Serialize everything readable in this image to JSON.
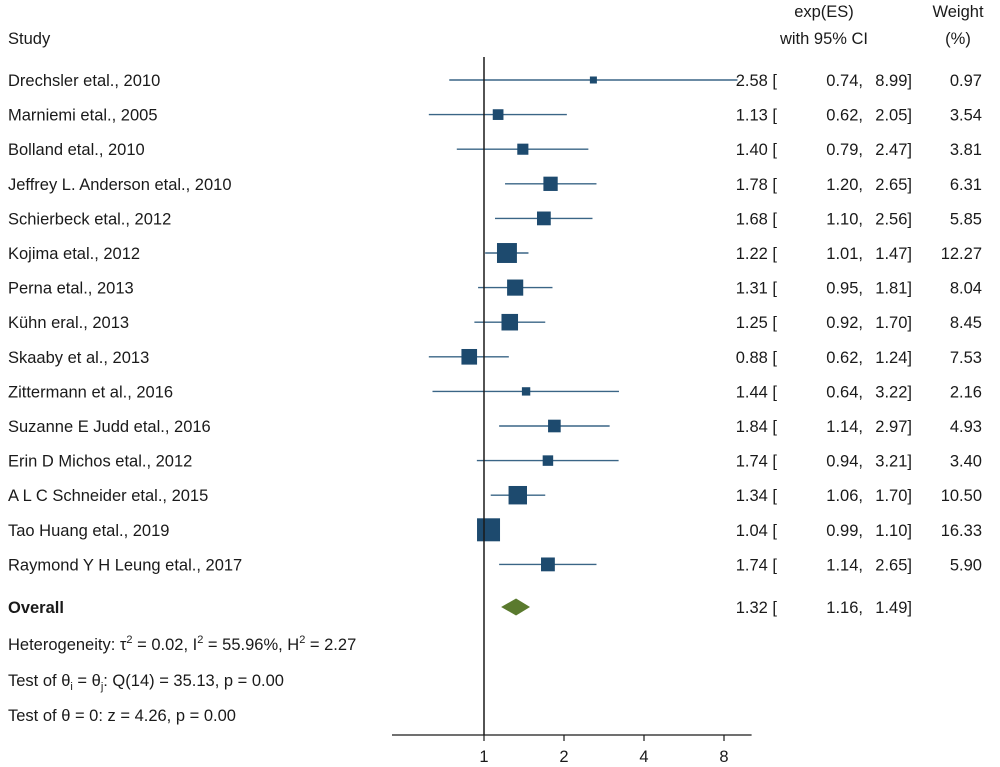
{
  "chart_data": {
    "type": "forest",
    "headers": {
      "study": "Study",
      "es_line1": "exp(ES)",
      "es_line2": "with 95% CI",
      "weight_line1": "Weight",
      "weight_line2": "(%)"
    },
    "x_axis": {
      "scale": "log2",
      "xlim": [
        0.5,
        9
      ],
      "ticks": [
        1,
        2,
        4,
        8
      ],
      "reference_line": 1
    },
    "studies": [
      {
        "label": "Drechsler etal., 2010",
        "es": 2.58,
        "lo": 0.74,
        "hi": 8.99,
        "weight": 0.97,
        "es_text": "2.58 [",
        "lo_text": "0.74,",
        "hi_text": "8.99]",
        "weight_text": "0.97"
      },
      {
        "label": "Marniemi etal., 2005",
        "es": 1.13,
        "lo": 0.62,
        "hi": 2.05,
        "weight": 3.54,
        "es_text": "1.13 [",
        "lo_text": "0.62,",
        "hi_text": "2.05]",
        "weight_text": "3.54"
      },
      {
        "label": "Bolland etal., 2010",
        "es": 1.4,
        "lo": 0.79,
        "hi": 2.47,
        "weight": 3.81,
        "es_text": "1.40 [",
        "lo_text": "0.79,",
        "hi_text": "2.47]",
        "weight_text": "3.81"
      },
      {
        "label": "Jeffrey L. Anderson etal., 2010",
        "es": 1.78,
        "lo": 1.2,
        "hi": 2.65,
        "weight": 6.31,
        "es_text": "1.78 [",
        "lo_text": "1.20,",
        "hi_text": "2.65]",
        "weight_text": "6.31"
      },
      {
        "label": "Schierbeck etal., 2012",
        "es": 1.68,
        "lo": 1.1,
        "hi": 2.56,
        "weight": 5.85,
        "es_text": "1.68 [",
        "lo_text": "1.10,",
        "hi_text": "2.56]",
        "weight_text": "5.85"
      },
      {
        "label": "Kojima etal., 2012",
        "es": 1.22,
        "lo": 1.01,
        "hi": 1.47,
        "weight": 12.27,
        "es_text": "1.22 [",
        "lo_text": "1.01,",
        "hi_text": "1.47]",
        "weight_text": "12.27"
      },
      {
        "label": "Perna etal., 2013",
        "es": 1.31,
        "lo": 0.95,
        "hi": 1.81,
        "weight": 8.04,
        "es_text": "1.31 [",
        "lo_text": "0.95,",
        "hi_text": "1.81]",
        "weight_text": "8.04"
      },
      {
        "label": "Kühn eral., 2013",
        "es": 1.25,
        "lo": 0.92,
        "hi": 1.7,
        "weight": 8.45,
        "es_text": "1.25 [",
        "lo_text": "0.92,",
        "hi_text": "1.70]",
        "weight_text": "8.45"
      },
      {
        "label": "Skaaby et al., 2013",
        "es": 0.88,
        "lo": 0.62,
        "hi": 1.24,
        "weight": 7.53,
        "es_text": "0.88 [",
        "lo_text": "0.62,",
        "hi_text": "1.24]",
        "weight_text": "7.53"
      },
      {
        "label": "Zittermann et al., 2016",
        "es": 1.44,
        "lo": 0.64,
        "hi": 3.22,
        "weight": 2.16,
        "es_text": "1.44 [",
        "lo_text": "0.64,",
        "hi_text": "3.22]",
        "weight_text": "2.16"
      },
      {
        "label": "Suzanne E Judd  etal., 2016",
        "es": 1.84,
        "lo": 1.14,
        "hi": 2.97,
        "weight": 4.93,
        "es_text": "1.84 [",
        "lo_text": "1.14,",
        "hi_text": "2.97]",
        "weight_text": "4.93"
      },
      {
        "label": "Erin D Michos etal., 2012",
        "es": 1.74,
        "lo": 0.94,
        "hi": 3.21,
        "weight": 3.4,
        "es_text": "1.74 [",
        "lo_text": "0.94,",
        "hi_text": "3.21]",
        "weight_text": "3.40"
      },
      {
        "label": "A L C Schneider etal., 2015",
        "es": 1.34,
        "lo": 1.06,
        "hi": 1.7,
        "weight": 10.5,
        "es_text": "1.34 [",
        "lo_text": "1.06,",
        "hi_text": "1.70]",
        "weight_text": "10.50"
      },
      {
        "label": "Tao Huang etal., 2019",
        "es": 1.04,
        "lo": 0.99,
        "hi": 1.1,
        "weight": 16.33,
        "es_text": "1.04 [",
        "lo_text": "0.99,",
        "hi_text": "1.10]",
        "weight_text": "16.33"
      },
      {
        "label": "Raymond Y H Leung etal., 2017",
        "es": 1.74,
        "lo": 1.14,
        "hi": 2.65,
        "weight": 5.9,
        "es_text": "1.74 [",
        "lo_text": "1.14,",
        "hi_text": "2.65]",
        "weight_text": "5.90"
      }
    ],
    "overall": {
      "label": "Overall",
      "es": 1.32,
      "lo": 1.16,
      "hi": 1.49,
      "es_text": "1.32 [",
      "lo_text": "1.16,",
      "hi_text": "1.49]"
    },
    "stats": {
      "heterogeneity": {
        "prefix": "Heterogeneity: τ",
        "tau_exp": "2",
        "mid1": " = 0.02, I",
        "i_exp": "2",
        "mid2": " = 55.96%, H",
        "h_exp": "2",
        "suffix": " = 2.27"
      },
      "test_equal": {
        "prefix": "Test of θ",
        "sub1": "i",
        "mid": " = θ",
        "sub2": "j",
        "suffix": ": Q(14) = 35.13, p = 0.00"
      },
      "test_zero": "Test of θ = 0: z = 4.26, p = 0.00"
    },
    "colors": {
      "marker": "#1d4a6e",
      "ci_line": "#3a6586",
      "diamond": "#5a7a2e",
      "axis": "#1a1a1a"
    }
  }
}
